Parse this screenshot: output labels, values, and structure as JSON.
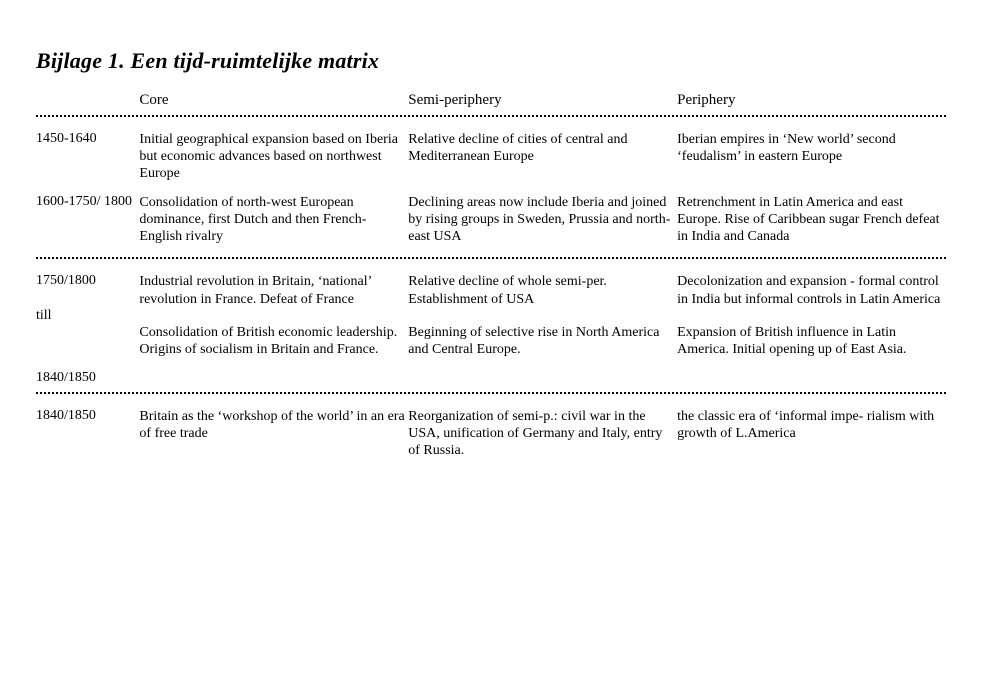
{
  "title": "Bijlage 1. Een tijd-ruimtelijke matrix",
  "headers": {
    "col1": "Core",
    "col2": "Semi-periphery",
    "col3": "Periphery"
  },
  "rows": {
    "r1": {
      "period": "1450-1640",
      "core": "Initial geographical expansion based on Iberia but economic advances based on northwest Europe",
      "semi": "Relative decline of cities of central and Mediterranean Europe",
      "peri": "Iberian empires in ‘New world’ second ‘feudalism’ in eastern Europe"
    },
    "r2": {
      "period": "1600-1750/ 1800",
      "core": "Consolidation of north-west European dominance, first Dutch and then French-English rivalry",
      "semi": "Declining areas now include Iberia and joined by rising groups in Sweden, Prussia and north-east USA",
      "peri": "Retrenchment in Latin America and east Europe. Rise of Caribbean sugar French defeat in India and Canada"
    },
    "r3a": {
      "period": "1750/1800",
      "core": "Industrial revolution in Britain, ‘national’ revolution in France. Defeat of France",
      "semi": "Relative decline of whole semi-per. Establishment of USA",
      "peri": "Decolonization and expansion - formal control in India but informal controls in Latin America"
    },
    "r3mid": {
      "period": "till"
    },
    "r3b": {
      "core": "Consolidation of British economic leadership. Origins of socialism in Britain and France.",
      "semi": "Beginning of selective rise in North America and Central Europe.",
      "peri": "Expansion of British influence in Latin America. Initial opening up of East Asia."
    },
    "r3end": {
      "period": "1840/1850"
    },
    "r4": {
      "period": "1840/1850",
      "core": "Britain as the ‘workshop of the world’ in an era of free trade",
      "semi": "Reorganization of semi-p.: civil war in the USA, unification of Germany and Italy, entry of Russia.",
      "peri": "the classic era of ‘informal impe- rialism with growth of L.America"
    }
  }
}
